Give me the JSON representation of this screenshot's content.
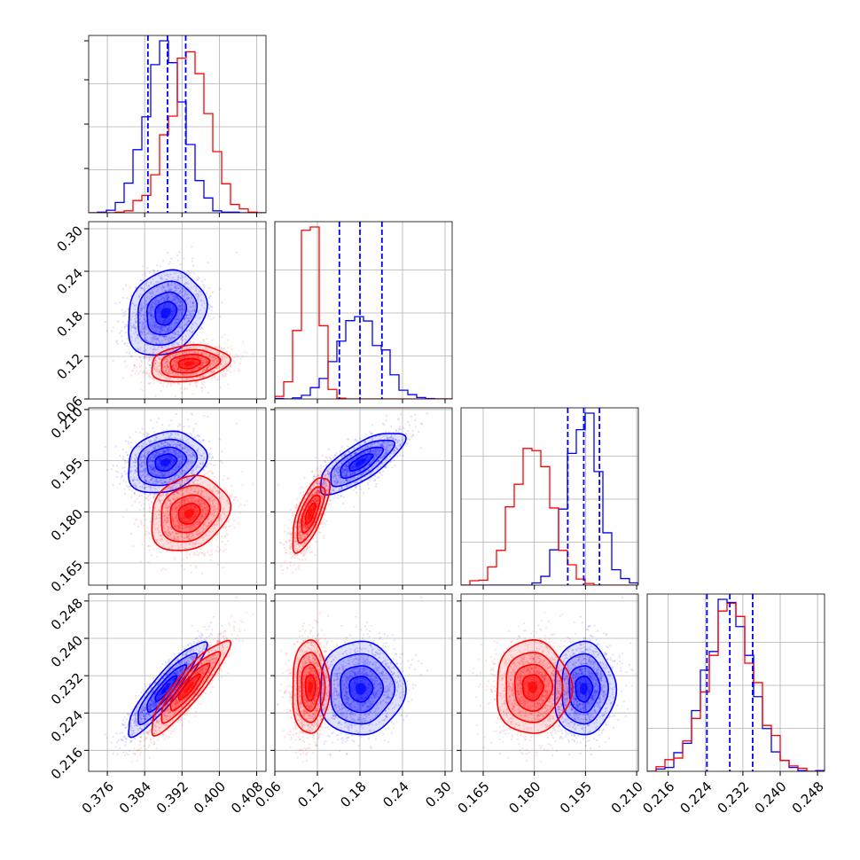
{
  "chart_data": {
    "type": "corner",
    "colors": {
      "series_a": "#0000ff",
      "series_b": "#ff0000",
      "frame": "#000000",
      "grid": "#b0b0b0"
    },
    "parameters": [
      {
        "range": [
          0.372,
          0.41
        ],
        "ticks": [
          "0.376",
          "0.384",
          "0.392",
          "0.400",
          "0.408"
        ],
        "tick_values": [
          0.376,
          0.384,
          0.392,
          0.4,
          0.408
        ]
      },
      {
        "range": [
          0.06,
          0.31
        ],
        "ticks": [
          "0.06",
          "0.12",
          "0.18",
          "0.24",
          "0.30"
        ],
        "tick_values": [
          0.06,
          0.12,
          0.18,
          0.24,
          0.3
        ]
      },
      {
        "range": [
          0.1585,
          0.2105
        ],
        "ticks": [
          "0.165",
          "0.180",
          "0.195",
          "0.210"
        ],
        "tick_values": [
          0.165,
          0.18,
          0.195,
          0.21
        ]
      },
      {
        "range": [
          0.2115,
          0.2495
        ],
        "ticks": [
          "0.216",
          "0.224",
          "0.232",
          "0.240",
          "0.248"
        ],
        "tick_values": [
          0.216,
          0.224,
          0.232,
          0.24,
          0.248
        ]
      }
    ],
    "series": [
      {
        "color": "blue",
        "means": [
          0.3885,
          0.181,
          0.1945,
          0.2292
        ],
        "sigmas": [
          0.0042,
          0.03,
          0.0045,
          0.005
        ],
        "quantiles": [
          [
            0.3847,
            0.3889,
            0.3928
          ],
          [
            0.151,
            0.18,
            0.211
          ],
          [
            0.1898,
            0.1945,
            0.1991
          ],
          [
            0.2243,
            0.2292,
            0.2341
          ]
        ],
        "correlations": {
          "0-1": 0.2,
          "0-2": 0.2,
          "1-2": 0.75,
          "0-3": 0.9,
          "1-3": 0.0,
          "2-3": 0.0
        }
      },
      {
        "color": "red",
        "means": [
          0.3935,
          0.11,
          0.1795,
          0.2295
        ],
        "sigmas": [
          0.0042,
          0.013,
          0.0055,
          0.005
        ],
        "correlations": {
          "0-1": 0.2,
          "0-2": 0.2,
          "1-2": 0.7,
          "0-3": 0.9,
          "1-3": 0.0,
          "2-3": 0.0
        }
      }
    ],
    "grid": true,
    "quantile_line_style": "dashed"
  }
}
